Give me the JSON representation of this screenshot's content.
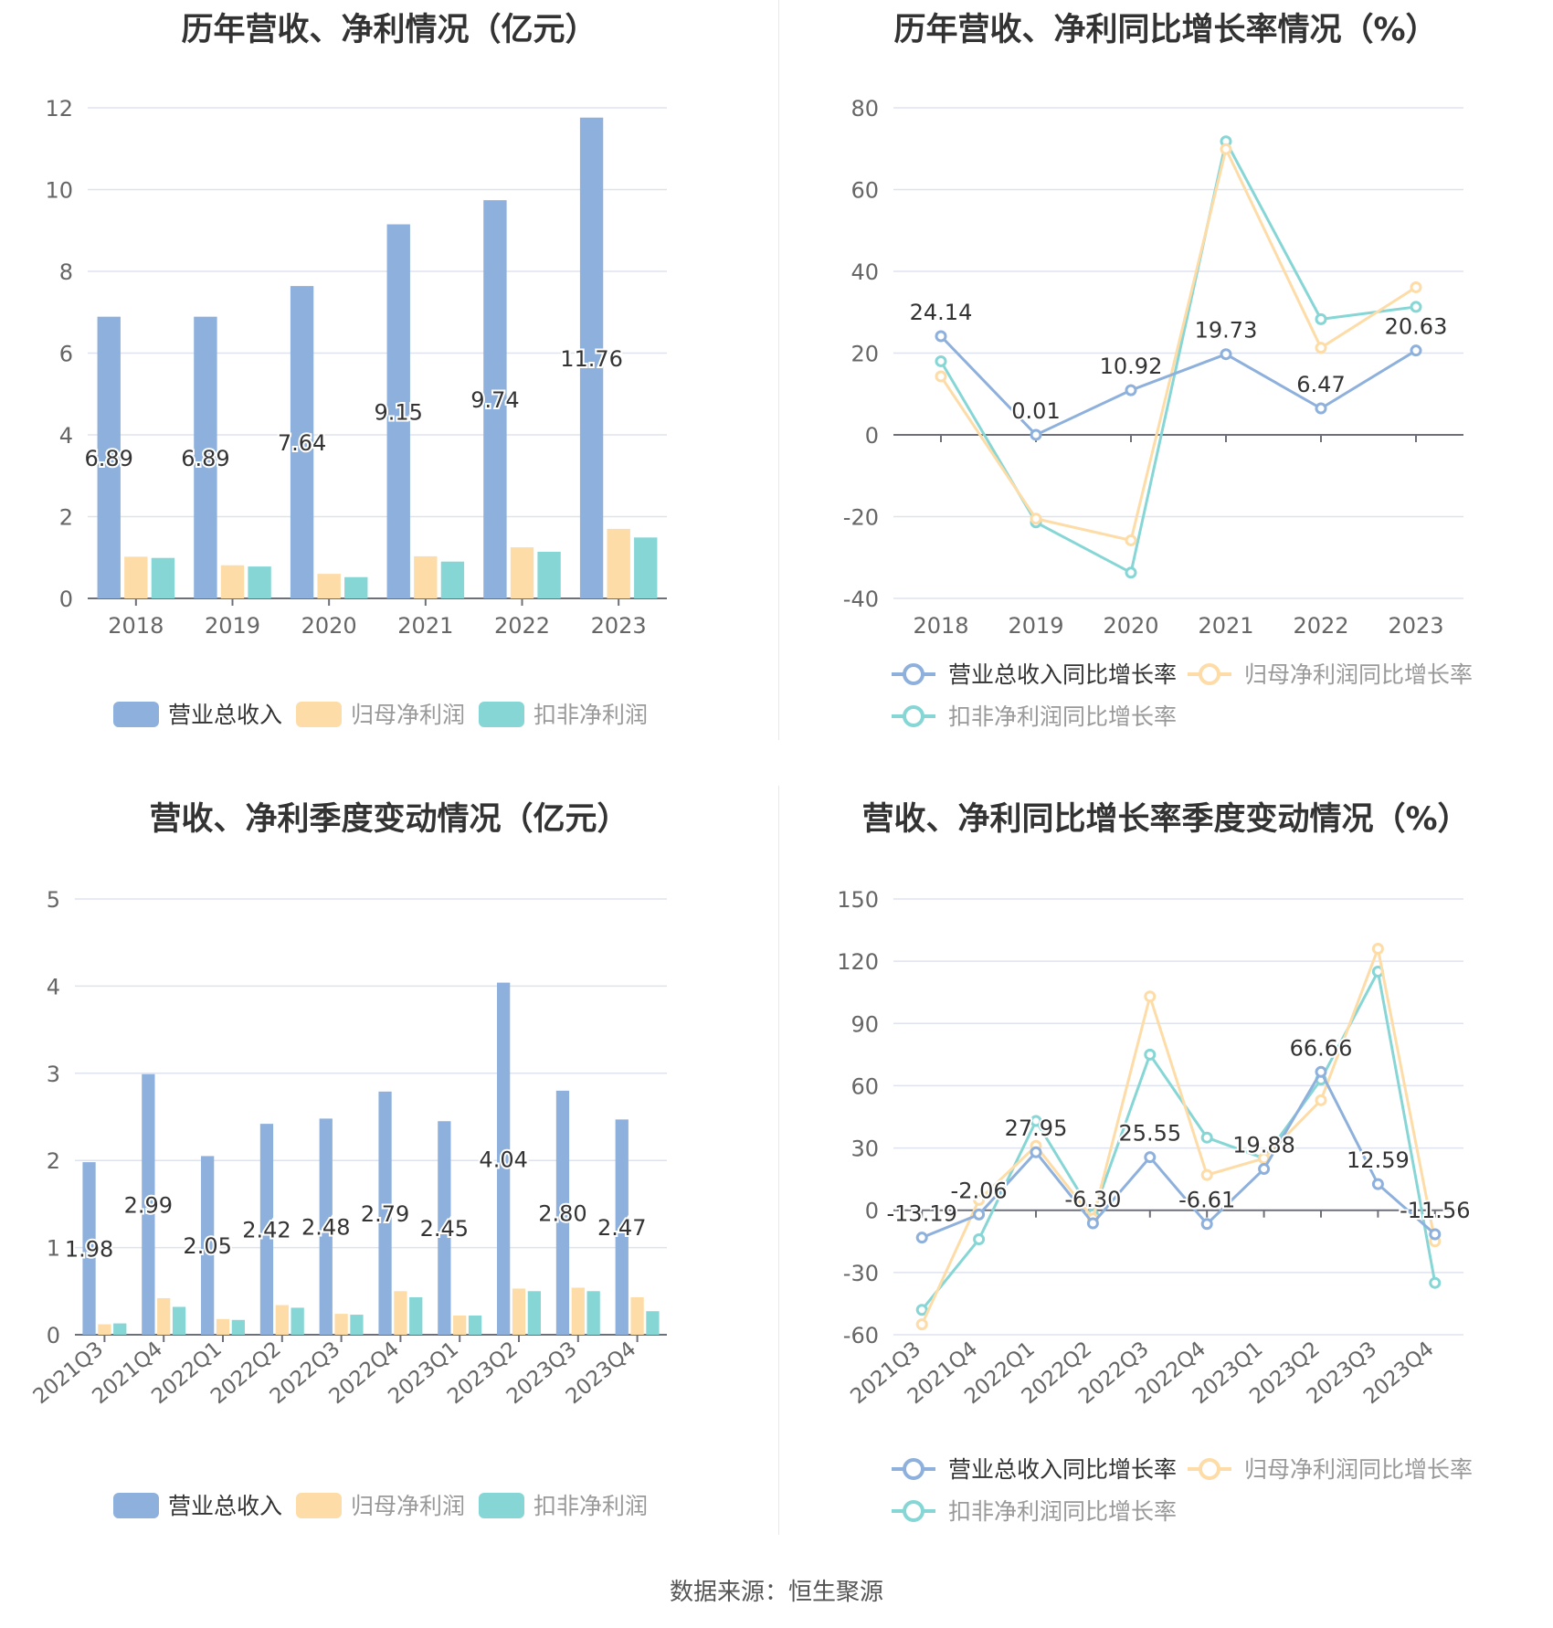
{
  "source": "数据来源：恒生聚源",
  "colors": {
    "revenue": "#8eb0dc",
    "net": "#fddca7",
    "deduct": "#86d6d6",
    "grid": "#dfe3ee",
    "axis": "#666666",
    "label": "#555555"
  },
  "chart_data": [
    {
      "id": "annual_values",
      "type": "bar",
      "title": "历年营收、净利情况（亿元）",
      "categories": [
        "2018",
        "2019",
        "2020",
        "2021",
        "2022",
        "2023"
      ],
      "ylim": [
        0,
        12
      ],
      "yticks": [
        0,
        2,
        4,
        6,
        8,
        10,
        12
      ],
      "series": [
        {
          "name": "营业总收入",
          "color": "#8eb0dc",
          "values": [
            6.89,
            6.89,
            7.64,
            9.15,
            9.74,
            11.76
          ],
          "labels": [
            "6.89",
            "6.89",
            "7.64",
            "9.15",
            "9.74",
            "11.76"
          ]
        },
        {
          "name": "归母净利润",
          "color": "#fddca7",
          "values": [
            1.02,
            0.81,
            0.6,
            1.03,
            1.25,
            1.7
          ]
        },
        {
          "name": "扣非净利润",
          "color": "#86d6d6",
          "values": [
            0.99,
            0.78,
            0.52,
            0.9,
            1.14,
            1.49
          ]
        }
      ]
    },
    {
      "id": "annual_growth",
      "type": "line",
      "title": "历年营收、净利同比增长率情况（%）",
      "categories": [
        "2018",
        "2019",
        "2020",
        "2021",
        "2022",
        "2023"
      ],
      "ylim": [
        -40,
        80
      ],
      "yticks": [
        -40,
        -20,
        0,
        20,
        40,
        60,
        80
      ],
      "series": [
        {
          "name": "营业总收入同比增长率",
          "color": "#8eb0dc",
          "values": [
            24.14,
            0.01,
            10.92,
            19.73,
            6.47,
            20.63
          ],
          "labels": [
            "24.14",
            "0.01",
            "10.92",
            "19.73",
            "6.47",
            "20.63"
          ]
        },
        {
          "name": "归母净利润同比增长率",
          "color": "#fddca7",
          "values": [
            14.3,
            -20.5,
            -25.8,
            69.9,
            21.3,
            36.1
          ]
        },
        {
          "name": "扣非净利润同比增长率",
          "color": "#86d6d6",
          "values": [
            18.0,
            -21.4,
            -33.7,
            71.8,
            28.3,
            31.3
          ]
        }
      ]
    },
    {
      "id": "quarter_values",
      "type": "bar",
      "title": "营收、净利季度变动情况（亿元）",
      "categories": [
        "2021Q3",
        "2021Q4",
        "2022Q1",
        "2022Q2",
        "2022Q3",
        "2022Q4",
        "2023Q1",
        "2023Q2",
        "2023Q3",
        "2023Q4"
      ],
      "ylim": [
        0,
        5
      ],
      "yticks": [
        0,
        1,
        2,
        3,
        4,
        5
      ],
      "series": [
        {
          "name": "营业总收入",
          "color": "#8eb0dc",
          "values": [
            1.98,
            2.99,
            2.05,
            2.42,
            2.48,
            2.79,
            2.45,
            4.04,
            2.8,
            2.47
          ],
          "labels": [
            "1.98",
            "2.99",
            "2.05",
            "2.42",
            "2.48",
            "2.79",
            "2.45",
            "4.04",
            "2.80",
            "2.47"
          ]
        },
        {
          "name": "归母净利润",
          "color": "#fddca7",
          "values": [
            0.12,
            0.42,
            0.18,
            0.34,
            0.24,
            0.5,
            0.22,
            0.53,
            0.54,
            0.43
          ]
        },
        {
          "name": "扣非净利润",
          "color": "#86d6d6",
          "values": [
            0.13,
            0.32,
            0.17,
            0.31,
            0.23,
            0.43,
            0.22,
            0.5,
            0.5,
            0.27
          ]
        }
      ]
    },
    {
      "id": "quarter_growth",
      "type": "line",
      "title": "营收、净利同比增长率季度变动情况（%）",
      "categories": [
        "2021Q3",
        "2021Q4",
        "2022Q1",
        "2022Q2",
        "2022Q3",
        "2022Q4",
        "2023Q1",
        "2023Q2",
        "2023Q3",
        "2023Q4"
      ],
      "ylim": [
        -60,
        150
      ],
      "yticks": [
        -60,
        -30,
        0,
        30,
        60,
        90,
        120,
        150
      ],
      "series": [
        {
          "name": "营业总收入同比增长率",
          "color": "#8eb0dc",
          "values": [
            -13.19,
            -2.06,
            27.95,
            -6.3,
            25.55,
            -6.61,
            19.88,
            66.66,
            12.59,
            -11.56
          ],
          "labels": [
            "-13.19",
            "-2.06",
            "27.95",
            "-6.30",
            "25.55",
            "-6.61",
            "19.88",
            "66.66",
            "12.59",
            "-11.56"
          ]
        },
        {
          "name": "归母净利润同比增长率",
          "color": "#fddca7",
          "values": [
            -55,
            5,
            31,
            -4,
            103,
            17,
            25,
            53,
            126,
            -15
          ]
        },
        {
          "name": "扣非净利润同比增长率",
          "color": "#86d6d6",
          "values": [
            -48,
            -14,
            43,
            -2,
            75,
            35,
            25,
            63,
            115,
            -35
          ]
        }
      ]
    }
  ]
}
